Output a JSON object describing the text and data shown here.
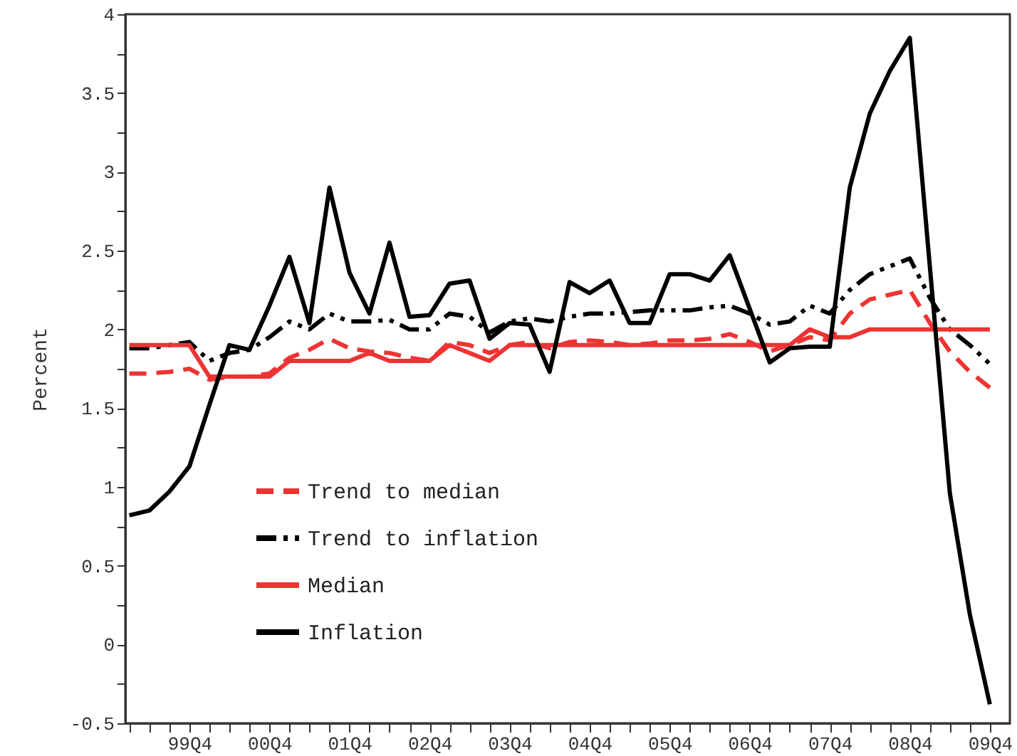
{
  "chart_data": {
    "type": "line",
    "ylabel": "Percent",
    "legend": "bottom left",
    "categories": [
      null,
      null,
      null,
      "99Q4",
      null,
      null,
      null,
      "00Q4",
      null,
      null,
      null,
      "01Q4",
      null,
      null,
      null,
      "02Q4",
      null,
      null,
      null,
      "03Q4",
      null,
      null,
      null,
      "04Q4",
      null,
      null,
      null,
      "05Q4",
      null,
      null,
      null,
      "06Q4",
      null,
      null,
      null,
      "07Q4",
      null,
      null,
      null,
      "08Q4",
      null,
      null,
      null,
      "09Q4"
    ],
    "ylim": [
      -0.5,
      4
    ],
    "yticks": [
      -0.5,
      {
        "value": -0.25,
        "label": null
      },
      0,
      {
        "value": 0.25,
        "label": null
      },
      0.5,
      {
        "value": 0.75,
        "label": null
      },
      1,
      {
        "value": 1.25,
        "label": null
      },
      1.5,
      {
        "value": 1.75,
        "label": null
      },
      2,
      {
        "value": 2.25,
        "label": null
      },
      2.5,
      {
        "value": 2.75,
        "label": null
      },
      3,
      {
        "value": 3.25,
        "label": null
      },
      3.5,
      {
        "value": 3.75,
        "label": null
      },
      4
    ],
    "series": [
      {
        "name": "Trend to median",
        "color": "#ee3333",
        "line_style": "dashed",
        "values": [
          1.72,
          1.72,
          1.73,
          1.75,
          1.68,
          1.7,
          1.7,
          1.72,
          1.82,
          1.87,
          1.94,
          1.88,
          1.86,
          1.85,
          1.82,
          1.8,
          1.92,
          1.9,
          1.85,
          1.9,
          1.92,
          1.88,
          1.92,
          1.93,
          1.92,
          1.9,
          1.91,
          1.93,
          1.93,
          1.94,
          1.97,
          1.92,
          1.86,
          1.9,
          1.95,
          1.93,
          2.1,
          2.19,
          2.22,
          2.25,
          2.04,
          1.86,
          1.73,
          1.63
        ]
      },
      {
        "name": "Trend to inflation",
        "color": "#000000",
        "line_style": "dashdot",
        "values": [
          1.88,
          1.88,
          1.9,
          1.92,
          1.8,
          1.85,
          1.87,
          1.95,
          2.05,
          2.0,
          2.1,
          2.05,
          2.05,
          2.06,
          2.0,
          2.0,
          2.1,
          2.08,
          1.98,
          2.05,
          2.07,
          2.05,
          2.08,
          2.1,
          2.1,
          2.11,
          2.12,
          2.12,
          2.12,
          2.14,
          2.15,
          2.1,
          2.03,
          2.05,
          2.15,
          2.1,
          2.25,
          2.35,
          2.4,
          2.45,
          2.2,
          2.0,
          1.9,
          1.78
        ]
      },
      {
        "name": "Median",
        "color": "#ee3333",
        "line_style": "solid",
        "values": [
          1.9,
          1.9,
          1.9,
          1.9,
          1.7,
          1.7,
          1.7,
          1.7,
          1.8,
          1.8,
          1.8,
          1.8,
          1.85,
          1.8,
          1.8,
          1.8,
          1.9,
          1.85,
          1.8,
          1.9,
          1.9,
          1.9,
          1.9,
          1.9,
          1.9,
          1.9,
          1.9,
          1.9,
          1.9,
          1.9,
          1.9,
          1.9,
          1.9,
          1.9,
          2.0,
          1.95,
          1.95,
          2.0,
          2.0,
          2.0,
          2.0,
          2.0,
          2.0,
          2.0
        ]
      },
      {
        "name": "Inflation",
        "color": "#000000",
        "line_style": "solid",
        "values": [
          0.82,
          0.85,
          0.97,
          1.13,
          1.52,
          1.9,
          1.87,
          2.15,
          2.46,
          2.04,
          2.9,
          2.36,
          2.1,
          2.55,
          2.08,
          2.09,
          2.29,
          2.31,
          1.94,
          2.04,
          2.03,
          1.73,
          2.3,
          2.23,
          2.31,
          2.04,
          2.04,
          2.35,
          2.35,
          2.31,
          2.47,
          2.13,
          1.79,
          1.88,
          1.89,
          1.89,
          2.9,
          3.37,
          3.64,
          3.85,
          2.4,
          0.96,
          0.19,
          -0.38
        ]
      }
    ]
  }
}
